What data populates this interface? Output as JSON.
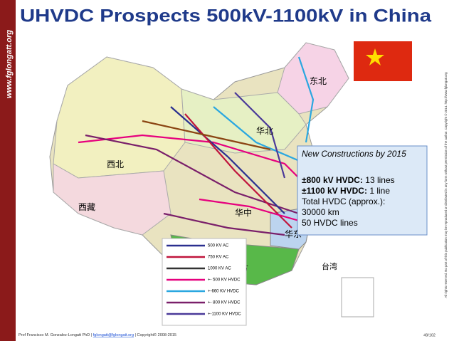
{
  "header": {
    "title": "UHVDC Prospects 500kV-1100kV in China",
    "website": "www.fglongatt.org"
  },
  "info_box": {
    "heading": "New Constructions by 2015",
    "items": [
      {
        "label": "±800 kV HVDC:",
        "value": "13 lines"
      },
      {
        "label": "±1100 kV HVDC:",
        "value": "1 line"
      }
    ],
    "lines": [
      "Total HVDC (approx.):",
      "30000 km",
      "50 HVDC lines"
    ]
  },
  "legend": {
    "items": [
      "500 KV AC",
      "750 KV AC",
      "1000 KV AC",
      "+- 500 KV HVDC",
      "+-660 KV HVDC",
      "+- 800 KV HVDC",
      "+-1100 KV HVDC"
    ]
  },
  "map": {
    "regions": [
      "西北",
      "西藏",
      "东北",
      "华北",
      "华中",
      "华东",
      "南方",
      "台湾"
    ]
  },
  "side_note": "All rights reserved. No part of this publication may be reproduced or distributed in any form without permission of the author. Copyright © 2014. http://www.fglongatt.org",
  "footer": {
    "credit": "Prof Francisco M. Gonzalez-Longatt PhD |",
    "email": "fglongatt@fglongatt.org",
    "copyright": "| Copyright© 2008-2015",
    "page": "49/102"
  }
}
